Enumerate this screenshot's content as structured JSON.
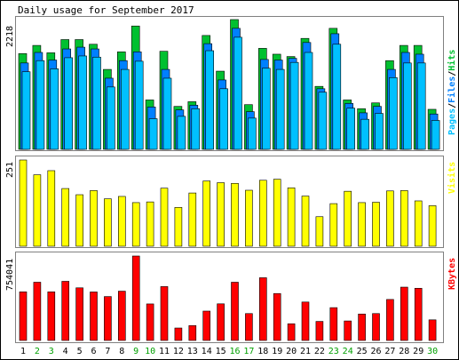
{
  "chart_data": {
    "title": "Daily usage for September 2017",
    "type": "bar",
    "days": [
      "1",
      "2",
      "3",
      "4",
      "5",
      "6",
      "7",
      "8",
      "9",
      "10",
      "11",
      "12",
      "13",
      "14",
      "15",
      "16",
      "17",
      "18",
      "19",
      "20",
      "21",
      "22",
      "23",
      "24",
      "25",
      "26",
      "27",
      "28",
      "29",
      "30"
    ],
    "weekend_days": [
      "2",
      "3",
      "9",
      "10",
      "16",
      "17",
      "23",
      "24",
      "30"
    ],
    "panels": {
      "hits": {
        "ymax_label": "2218",
        "ymax": 2218,
        "series": [
          {
            "name": "Hits",
            "color": "#00c030",
            "values": [
              1636,
              1776,
              1650,
              1876,
              1876,
              1796,
              1366,
              1666,
              2108,
              844,
              1676,
              734,
              814,
              1946,
              1336,
              2218,
              764,
              1726,
              1626,
              1586,
              1896,
              1076,
              2068,
              844,
              694,
              794,
              1516,
              1776,
              1776,
              684
            ]
          },
          {
            "name": "Files",
            "color": "#0080ff",
            "values": [
              1476,
              1656,
              1526,
              1716,
              1746,
              1716,
              1216,
              1516,
              1666,
              724,
              1366,
              674,
              754,
              1806,
              1186,
              2068,
              644,
              1536,
              1526,
              1556,
              1826,
              1036,
              1976,
              784,
              624,
              734,
              1366,
              1656,
              1626,
              604
            ]
          },
          {
            "name": "Pages",
            "color": "#00c0ff",
            "values": [
              1326,
              1516,
              1376,
              1566,
              1596,
              1576,
              1066,
              1366,
              1506,
              524,
              1216,
              564,
              694,
              1686,
              1036,
              1916,
              534,
              1386,
              1366,
              1486,
              1656,
              976,
              1796,
              704,
              514,
              614,
              1226,
              1476,
              1476,
              494
            ]
          }
        ],
        "legend_parts": [
          {
            "text": "Pages",
            "color": "#00c0ff"
          },
          {
            "text": "/",
            "color": "#000000"
          },
          {
            "text": "Files",
            "color": "#0080ff"
          },
          {
            "text": "/",
            "color": "#000000"
          },
          {
            "text": "Hits",
            "color": "#00c030"
          }
        ]
      },
      "visits": {
        "ymax_label": "251",
        "ymax": 251,
        "series": [
          {
            "name": "Visits",
            "color": "#ffff00",
            "values": [
              251,
              208,
              220,
              168,
              150,
              162,
              138,
              145,
              127,
              129,
              169,
              113,
              155,
              190,
              185,
              183,
              163,
              192,
              195,
              170,
              146,
              86,
              124,
              160,
              127,
              128,
              161,
              162,
              132,
              118
            ]
          }
        ],
        "legend_parts": [
          {
            "text": "Visits",
            "color": "#ffff00"
          }
        ]
      },
      "kbytes": {
        "ymax_label": "754041",
        "ymax": 754041,
        "series": [
          {
            "name": "KBytes",
            "color": "#ff0000",
            "values": [
              434000,
              520000,
              434000,
              528000,
              470000,
              433000,
              392000,
              440000,
              754041,
              326000,
              481000,
              111000,
              133000,
              262000,
              327000,
              520000,
              240000,
              560000,
              419000,
              149000,
              343000,
              170000,
              293000,
              174000,
              236000,
              240000,
              366000,
              476000,
              466000,
              184000
            ]
          }
        ],
        "legend_parts": [
          {
            "text": "KBytes",
            "color": "#ff0000"
          }
        ]
      }
    }
  }
}
